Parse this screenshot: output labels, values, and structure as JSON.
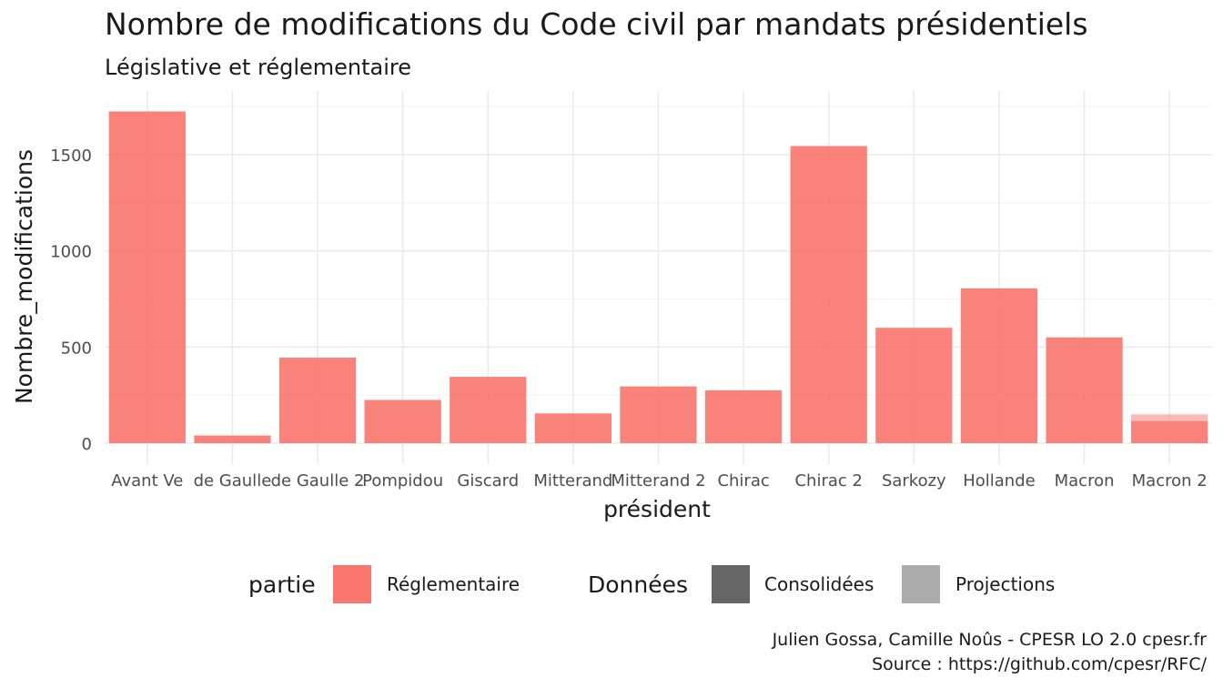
{
  "colors": {
    "bar": "#F8766D",
    "legend_consolidees": "#666666",
    "legend_projections": "#ababab",
    "grid": "#ebebeb"
  },
  "chart_data": {
    "type": "bar",
    "title": "Nombre de modifications du Code civil par mandats présidentiels",
    "subtitle": "Législative et réglementaire",
    "xlabel": "président",
    "ylabel": "Nombre_modifications",
    "categories": [
      "Avant Ve",
      "de Gaulle",
      "de Gaulle 2",
      "Pompidou",
      "Giscard",
      "Mitterand",
      "Mitterand 2",
      "Chirac",
      "Chirac 2",
      "Sarkozy",
      "Hollande",
      "Macron",
      "Macron 2"
    ],
    "series": [
      {
        "name": "Consolidées",
        "values": [
          1725,
          40,
          445,
          225,
          345,
          155,
          295,
          275,
          1545,
          600,
          805,
          550,
          115
        ]
      },
      {
        "name": "Projections",
        "values": [
          0,
          0,
          0,
          0,
          0,
          0,
          0,
          0,
          0,
          0,
          0,
          0,
          35
        ]
      }
    ],
    "yticks": [
      0,
      500,
      1000,
      1500
    ],
    "ylim": [
      0,
      1800
    ],
    "grid": true,
    "stacked": true,
    "legend_position": "bottom",
    "legend": {
      "partie_title": "partie",
      "partie_items": [
        "Réglementaire"
      ],
      "donnees_title": "Données",
      "donnees_items": [
        "Consolidées",
        "Projections"
      ]
    },
    "caption": [
      "Julien Gossa, Camille Noûs - CPESR LO 2.0 cpesr.fr",
      "Source : https://github.com/cpesr/RFC/"
    ]
  }
}
